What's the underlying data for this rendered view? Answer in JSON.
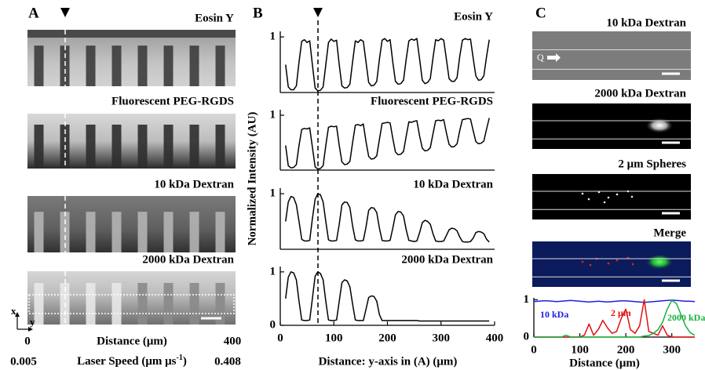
{
  "panel_a": {
    "label": "A",
    "image_titles": [
      "Eosin Y",
      "Fluorescent PEG-RGDS",
      "10 kDa Dextran",
      "2000 kDa Dextran"
    ],
    "axis_x": "x",
    "axis_y": "y",
    "distance": {
      "start": "0",
      "label": "Distance (μm)",
      "end": "400"
    },
    "laser_speed": {
      "start": "0.005",
      "label": "Laser Speed (μm μs",
      "superscript": "-1",
      "suffix": ")",
      "end": "0.408"
    }
  },
  "panel_b": {
    "label": "B",
    "y_label": "Normalized Intensity (AU)",
    "x_label": "Distance: y-axis in (A) (μm)"
  },
  "panel_c": {
    "label": "C",
    "image_titles": [
      "10 kDa Dextran",
      "2000 kDa Dextran",
      "2 μm Spheres",
      "Merge"
    ],
    "flow_label": "Q"
  },
  "chart_data": [
    {
      "type": "line",
      "title": "Eosin Y",
      "color": "#000000",
      "xlim": [
        0,
        400
      ],
      "ylim": [
        0,
        1.1
      ],
      "yticks": [
        1
      ],
      "x": [
        10,
        15,
        20,
        25,
        30,
        35,
        40,
        45,
        50,
        55,
        60,
        65,
        70,
        75,
        80,
        85,
        90,
        95,
        100,
        105,
        110,
        115,
        120,
        125,
        130,
        135,
        140,
        145,
        150,
        155,
        160,
        165,
        170,
        175,
        180,
        185,
        190,
        195,
        200,
        205,
        210,
        215,
        220,
        225,
        230,
        235,
        240,
        245,
        250,
        255,
        260,
        265,
        270,
        275,
        280,
        285,
        290,
        295,
        300,
        305,
        310,
        315,
        320,
        325,
        330,
        335,
        340,
        345,
        350,
        355,
        360,
        365,
        370,
        375,
        380,
        385,
        390
      ],
      "values": [
        0.5,
        0.1,
        0.05,
        0.05,
        0.12,
        0.55,
        0.92,
        0.95,
        0.9,
        0.93,
        0.5,
        0.08,
        0.03,
        0.04,
        0.1,
        0.5,
        0.9,
        0.96,
        0.92,
        0.94,
        0.5,
        0.12,
        0.08,
        0.09,
        0.15,
        0.55,
        0.93,
        0.9,
        0.95,
        0.92,
        0.55,
        0.18,
        0.12,
        0.13,
        0.2,
        0.6,
        0.94,
        0.97,
        0.92,
        0.95,
        0.55,
        0.2,
        0.15,
        0.16,
        0.22,
        0.6,
        0.93,
        0.96,
        0.94,
        0.97,
        0.6,
        0.22,
        0.16,
        0.18,
        0.25,
        0.62,
        0.95,
        0.93,
        0.97,
        0.94,
        0.6,
        0.25,
        0.2,
        0.2,
        0.27,
        0.65,
        0.94,
        0.97,
        0.95,
        0.96,
        0.62,
        0.3,
        0.22,
        0.23,
        0.3,
        0.65,
        0.95
      ]
    },
    {
      "type": "line",
      "title": "Fluorescent PEG-RGDS",
      "color": "#000000",
      "xlim": [
        0,
        400
      ],
      "ylim": [
        0,
        1.1
      ],
      "yticks": [
        1
      ],
      "x": [
        10,
        15,
        20,
        25,
        30,
        35,
        40,
        45,
        50,
        55,
        60,
        65,
        70,
        75,
        80,
        85,
        90,
        95,
        100,
        105,
        110,
        115,
        120,
        125,
        130,
        135,
        140,
        145,
        150,
        155,
        160,
        165,
        170,
        175,
        180,
        185,
        190,
        195,
        200,
        205,
        210,
        215,
        220,
        225,
        230,
        235,
        240,
        245,
        250,
        255,
        260,
        265,
        270,
        275,
        280,
        285,
        290,
        295,
        300,
        305,
        310,
        315,
        320,
        325,
        330,
        335,
        340,
        345,
        350,
        355,
        360,
        365,
        370,
        375,
        380,
        385,
        390
      ],
      "values": [
        0.45,
        0.08,
        0.04,
        0.05,
        0.1,
        0.45,
        0.74,
        0.76,
        0.75,
        0.77,
        0.42,
        0.06,
        0.02,
        0.03,
        0.08,
        0.45,
        0.78,
        0.8,
        0.79,
        0.8,
        0.45,
        0.15,
        0.1,
        0.11,
        0.16,
        0.5,
        0.82,
        0.83,
        0.81,
        0.84,
        0.52,
        0.25,
        0.2,
        0.21,
        0.26,
        0.56,
        0.85,
        0.86,
        0.87,
        0.86,
        0.58,
        0.33,
        0.28,
        0.29,
        0.34,
        0.62,
        0.88,
        0.87,
        0.89,
        0.9,
        0.62,
        0.4,
        0.35,
        0.36,
        0.41,
        0.66,
        0.9,
        0.91,
        0.9,
        0.92,
        0.68,
        0.47,
        0.42,
        0.43,
        0.48,
        0.72,
        0.92,
        0.93,
        0.94,
        0.93,
        0.72,
        0.52,
        0.48,
        0.49,
        0.53,
        0.75,
        0.95
      ]
    },
    {
      "type": "line",
      "title": "10 kDa Dextran",
      "color": "#000000",
      "xlim": [
        0,
        400
      ],
      "ylim": [
        0,
        1.1
      ],
      "yticks": [
        1
      ],
      "x": [
        10,
        15,
        20,
        25,
        30,
        35,
        40,
        45,
        50,
        55,
        60,
        65,
        70,
        75,
        80,
        85,
        90,
        95,
        100,
        105,
        110,
        115,
        120,
        125,
        130,
        135,
        140,
        145,
        150,
        155,
        160,
        165,
        170,
        175,
        180,
        185,
        190,
        195,
        200,
        205,
        210,
        215,
        220,
        225,
        230,
        235,
        240,
        245,
        250,
        255,
        260,
        265,
        270,
        275,
        280,
        285,
        290,
        295,
        300,
        305,
        310,
        315,
        320,
        325,
        330,
        335,
        340,
        345,
        350,
        355,
        360,
        365,
        370,
        375,
        380,
        385,
        390
      ],
      "values": [
        0.5,
        0.85,
        0.95,
        0.93,
        0.8,
        0.5,
        0.18,
        0.15,
        0.15,
        0.16,
        0.55,
        0.9,
        1.0,
        0.98,
        0.85,
        0.5,
        0.17,
        0.15,
        0.15,
        0.16,
        0.45,
        0.8,
        0.85,
        0.84,
        0.75,
        0.42,
        0.17,
        0.15,
        0.15,
        0.16,
        0.4,
        0.7,
        0.75,
        0.74,
        0.66,
        0.38,
        0.16,
        0.15,
        0.15,
        0.16,
        0.38,
        0.62,
        0.68,
        0.67,
        0.6,
        0.35,
        0.16,
        0.15,
        0.14,
        0.15,
        0.3,
        0.48,
        0.52,
        0.5,
        0.45,
        0.28,
        0.15,
        0.14,
        0.14,
        0.15,
        0.25,
        0.35,
        0.38,
        0.37,
        0.33,
        0.22,
        0.14,
        0.13,
        0.13,
        0.14,
        0.2,
        0.3,
        0.32,
        0.31,
        0.28,
        0.18,
        0.13
      ]
    },
    {
      "type": "line",
      "title": "2000 kDa Dextran",
      "color": "#000000",
      "xlim": [
        0,
        400
      ],
      "ylim": [
        0,
        1.1
      ],
      "yticks": [
        0,
        1
      ],
      "xticks": [
        0,
        100,
        200,
        300,
        400
      ],
      "x": [
        10,
        15,
        20,
        25,
        30,
        35,
        40,
        45,
        50,
        55,
        60,
        65,
        70,
        75,
        80,
        85,
        90,
        95,
        100,
        105,
        110,
        115,
        120,
        125,
        130,
        135,
        140,
        145,
        150,
        155,
        160,
        165,
        170,
        175,
        180,
        185,
        190,
        195,
        200,
        205,
        210,
        215,
        220,
        225,
        230,
        235,
        240,
        245,
        250,
        255,
        260,
        265,
        270,
        275,
        280,
        285,
        290,
        295,
        300,
        305,
        310,
        315,
        320,
        325,
        330,
        335,
        340,
        345,
        350,
        355,
        360,
        365,
        370,
        375,
        380,
        385,
        390
      ],
      "values": [
        0.5,
        0.9,
        1.0,
        0.98,
        0.85,
        0.45,
        0.1,
        0.09,
        0.09,
        0.1,
        0.5,
        0.92,
        1.0,
        0.97,
        0.85,
        0.45,
        0.1,
        0.09,
        0.09,
        0.1,
        0.45,
        0.8,
        0.85,
        0.83,
        0.72,
        0.4,
        0.1,
        0.09,
        0.09,
        0.09,
        0.3,
        0.52,
        0.55,
        0.54,
        0.45,
        0.2,
        0.09,
        0.09,
        0.09,
        0.09,
        0.09,
        0.09,
        0.09,
        0.09,
        0.09,
        0.09,
        0.09,
        0.09,
        0.09,
        0.09,
        0.08,
        0.08,
        0.08,
        0.08,
        0.08,
        0.08,
        0.08,
        0.08,
        0.08,
        0.08,
        0.08,
        0.08,
        0.08,
        0.08,
        0.08,
        0.08,
        0.08,
        0.08,
        0.08,
        0.08,
        0.08,
        0.08,
        0.08,
        0.08,
        0.08,
        0.08,
        0.08
      ]
    },
    {
      "type": "line",
      "x_label": "Distance (μm)",
      "xlim": [
        0,
        350
      ],
      "ylim": [
        0,
        1.05
      ],
      "yticks": [
        0,
        1
      ],
      "xticks": [
        0,
        100,
        200,
        300
      ],
      "x": [
        0,
        10,
        20,
        30,
        40,
        50,
        60,
        70,
        80,
        90,
        100,
        110,
        120,
        130,
        140,
        150,
        160,
        170,
        180,
        190,
        200,
        210,
        220,
        230,
        240,
        250,
        260,
        270,
        280,
        290,
        300,
        310,
        320,
        330,
        340,
        350
      ],
      "series": [
        {
          "name": "10 kDa",
          "color": "#2020e0",
          "values": [
            0.95,
            0.96,
            0.97,
            0.97,
            0.96,
            0.95,
            0.96,
            0.97,
            0.98,
            0.97,
            0.96,
            0.95,
            0.94,
            0.95,
            0.96,
            0.95,
            0.94,
            0.95,
            0.96,
            0.97,
            0.97,
            0.96,
            0.95,
            0.94,
            0.93,
            0.94,
            0.95,
            0.96,
            0.97,
            0.98,
            0.99,
            0.98,
            0.97,
            0.96,
            0.96,
            0.95
          ]
        },
        {
          "name": "2 μm",
          "color": "#e01010",
          "values": [
            0,
            0,
            0,
            0,
            0,
            0,
            0,
            0,
            0,
            0,
            0,
            0.05,
            0.35,
            0.05,
            0.2,
            0.45,
            0.25,
            0.1,
            0.15,
            0.5,
            0.75,
            0.2,
            0.1,
            0.3,
            1.0,
            0.15,
            0.1,
            0.05,
            0.3,
            0.05,
            0,
            0,
            0,
            0,
            0,
            0
          ]
        },
        {
          "name": "2000 kDa",
          "color": "#18b040",
          "values": [
            0,
            0,
            0,
            0,
            0,
            0,
            0,
            0.05,
            0,
            0,
            0,
            0,
            0,
            0,
            0,
            0,
            0,
            0,
            0,
            0,
            0,
            0,
            0,
            0,
            0.03,
            0.04,
            0.1,
            0.2,
            0.4,
            0.75,
            0.98,
            0.9,
            0.6,
            0.3,
            0.12,
            0.05
          ]
        }
      ]
    }
  ]
}
